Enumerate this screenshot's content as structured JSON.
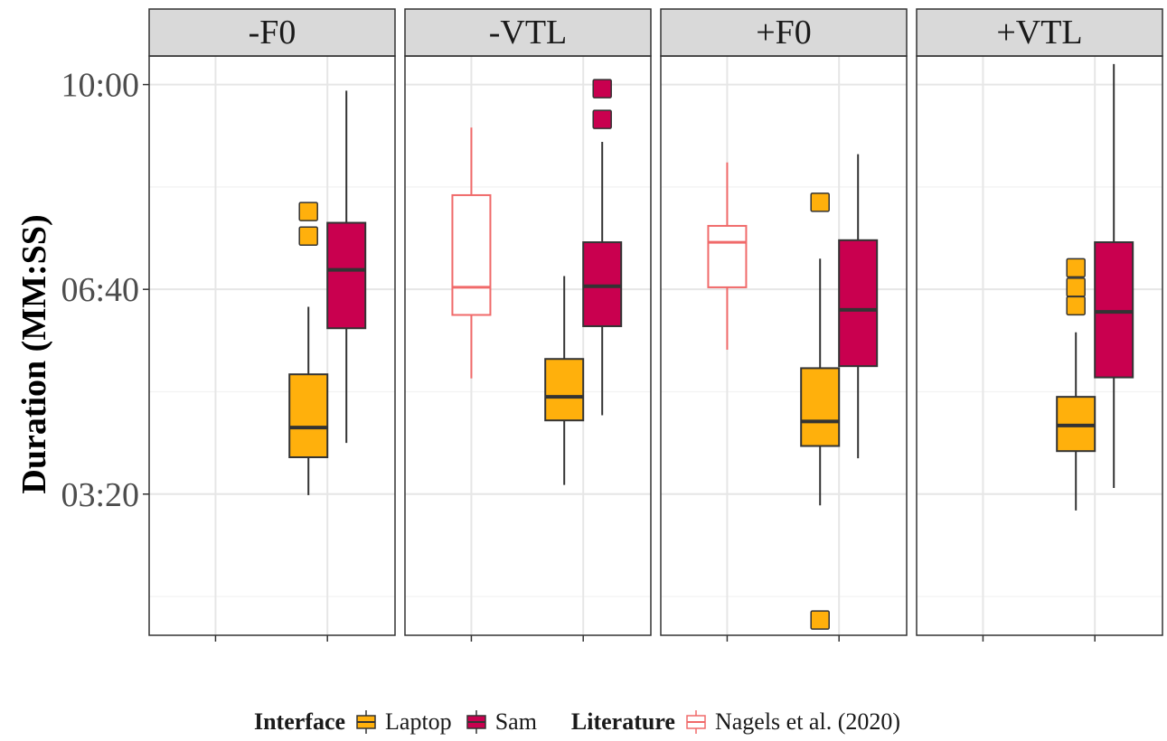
{
  "chart_data": {
    "type": "boxplot",
    "ylabel": "Duration (MM:SS)",
    "y_unit": "seconds",
    "ylim": [
      63,
      627
    ],
    "y_ticks": [
      {
        "value": 200,
        "label": "03:20"
      },
      {
        "value": 400,
        "label": "06:40"
      },
      {
        "value": 600,
        "label": "10:00"
      }
    ],
    "y_minor_gridlines": [
      100,
      300,
      500
    ],
    "x_slots": 2,
    "grid": true,
    "facets": [
      "-F0",
      "-VTL",
      "+F0",
      "+VTL"
    ],
    "legend": {
      "position": "bottom",
      "groups": [
        {
          "title": "Interface",
          "entries": [
            {
              "label": "Laptop",
              "fill": "#FFB00C",
              "stroke": "#333333"
            },
            {
              "label": "Sam",
              "fill": "#C9004F",
              "stroke": "#333333"
            }
          ]
        },
        {
          "title": "Literature",
          "entries": [
            {
              "label": "Nagels et al. (2020)",
              "fill": "#FFFFFF",
              "stroke": "#F06A6A"
            }
          ]
        }
      ]
    },
    "boxes": [
      {
        "facet": "-F0",
        "slot": 2,
        "series": "Laptop",
        "offset": -1,
        "whisker_low": 199,
        "q1": 236,
        "median": 265,
        "q3": 317,
        "whisker_high": 383,
        "outliers": [
          452,
          476
        ]
      },
      {
        "facet": "-F0",
        "slot": 2,
        "series": "Sam",
        "offset": 1,
        "whisker_low": 250,
        "q1": 362,
        "median": 419,
        "q3": 465,
        "whisker_high": 594,
        "outliers": []
      },
      {
        "facet": "-VTL",
        "slot": 1,
        "series": "Nagels et al. (2020)",
        "offset": 0,
        "whisker_low": 313,
        "q1": 375,
        "median": 402,
        "q3": 492,
        "whisker_high": 558,
        "outliers": []
      },
      {
        "facet": "-VTL",
        "slot": 2,
        "series": "Laptop",
        "offset": -1,
        "whisker_low": 209,
        "q1": 272,
        "median": 295,
        "q3": 332,
        "whisker_high": 413,
        "outliers": []
      },
      {
        "facet": "-VTL",
        "slot": 2,
        "series": "Sam",
        "offset": 1,
        "whisker_low": 277,
        "q1": 364,
        "median": 403,
        "q3": 446,
        "whisker_high": 544,
        "outliers": [
          566,
          596
        ]
      },
      {
        "facet": "+F0",
        "slot": 1,
        "series": "Nagels et al. (2020)",
        "offset": 0,
        "whisker_low": 341,
        "q1": 402,
        "median": 446,
        "q3": 462,
        "whisker_high": 524,
        "outliers": []
      },
      {
        "facet": "+F0",
        "slot": 2,
        "series": "Laptop",
        "offset": -1,
        "whisker_low": 189,
        "q1": 247,
        "median": 271,
        "q3": 323,
        "whisker_high": 430,
        "outliers": [
          77,
          485
        ]
      },
      {
        "facet": "+F0",
        "slot": 2,
        "series": "Sam",
        "offset": 1,
        "whisker_low": 235,
        "q1": 325,
        "median": 380,
        "q3": 448,
        "whisker_high": 532,
        "outliers": []
      },
      {
        "facet": "+VTL",
        "slot": 2,
        "series": "Laptop",
        "offset": -1,
        "whisker_low": 184,
        "q1": 242,
        "median": 267,
        "q3": 295,
        "whisker_high": 358,
        "outliers": [
          384,
          402,
          421
        ]
      },
      {
        "facet": "+VTL",
        "slot": 2,
        "series": "Sam",
        "offset": 1,
        "whisker_low": 206,
        "q1": 314,
        "median": 378,
        "q3": 446,
        "whisker_high": 620,
        "outliers": []
      }
    ]
  }
}
